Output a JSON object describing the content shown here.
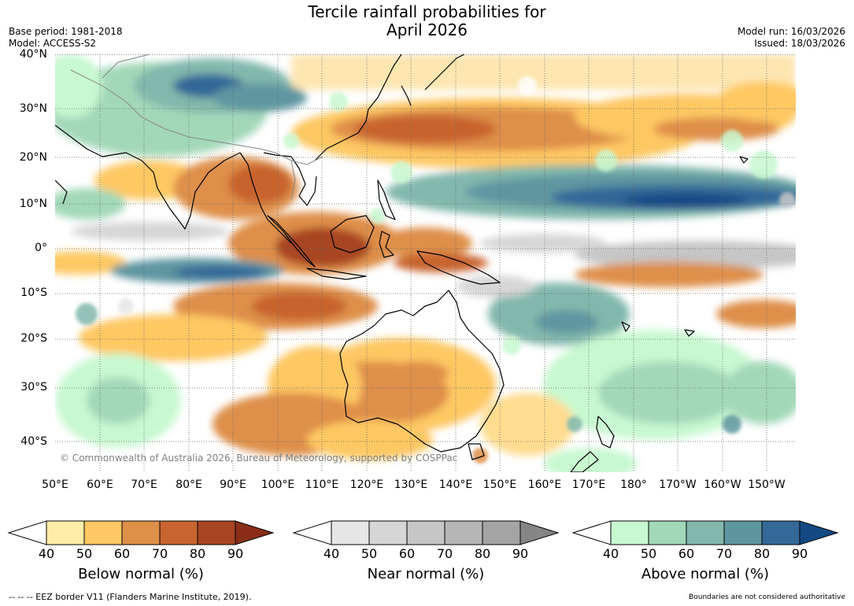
{
  "title_line1": "Tercile rainfall probabilities for",
  "title_line2": "April 2026",
  "base_period": "Base period: 1981-2018",
  "model": "Model: ACCESS-S2",
  "model_run": "Model run: 16/03/2026",
  "issued": "Issued: 18/03/2026",
  "lat_labels": [
    "40°N",
    "30°N",
    "20°N",
    "10°N",
    "0°",
    "10°S",
    "20°S",
    "30°S",
    "40°S"
  ],
  "lon_labels": [
    "50°E",
    "60°E",
    "70°E",
    "80°E",
    "90°E",
    "100°E",
    "110°E",
    "120°E",
    "130°E",
    "140°E",
    "150°E",
    "160°E",
    "170°E",
    "180°",
    "170°W",
    "160°W",
    "150°W"
  ],
  "copyright": "© Commonwealth of Australia 2026, Bureau of Meteorology, supported by COSPPac",
  "colorbars": [
    {
      "title": "Below normal (%)",
      "ticks": [
        "40",
        "50",
        "60",
        "70",
        "80",
        "90"
      ],
      "colors": [
        "#ffeca6",
        "#fec864",
        "#de8f48",
        "#c8642f",
        "#a84522",
        "#8a2e18"
      ]
    },
    {
      "title": "Near normal (%)",
      "ticks": [
        "40",
        "50",
        "60",
        "70",
        "80",
        "90"
      ],
      "colors": [
        "#e6e6e6",
        "#d6d6d6",
        "#c6c6c6",
        "#b6b6b6",
        "#a4a4a4",
        "#858585"
      ]
    },
    {
      "title": "Above normal (%)",
      "ticks": [
        "40",
        "50",
        "60",
        "70",
        "80",
        "90"
      ],
      "colors": [
        "#c8f8d0",
        "#a2d8b8",
        "#82b8ac",
        "#5e96a0",
        "#336898",
        "#134a84"
      ]
    }
  ],
  "eez_note": "--  --  -- EEZ border V11 (Flanders Marine Institute, 2019).",
  "boundaries_note": "Boundaries are not considered authoritative"
}
